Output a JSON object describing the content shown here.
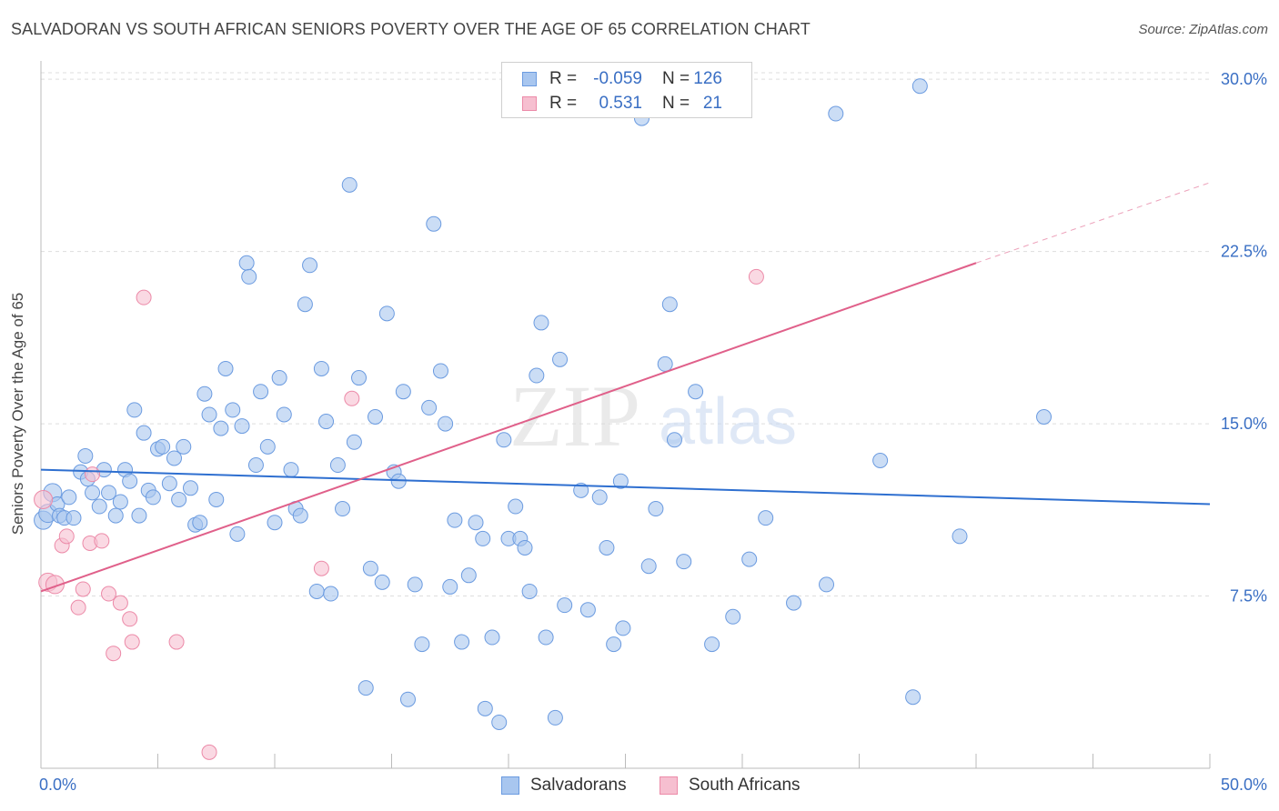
{
  "title": "SALVADORAN VS SOUTH AFRICAN SENIORS POVERTY OVER THE AGE OF 65 CORRELATION CHART",
  "source": "Source: ZipAtlas.com",
  "colors": {
    "blue_fill": "#a8c6ef",
    "blue_stroke": "#6b9be0",
    "blue_line": "#2e6fd0",
    "pink_fill": "#f6bfd0",
    "pink_stroke": "#ec8aa8",
    "pink_line": "#e0608a",
    "tick_label": "#3a6fc4",
    "grid": "#dddddd"
  },
  "legend": {
    "rows": [
      {
        "series": "Salvadorans",
        "r_label": "R =",
        "r_value": "-0.059",
        "n_label": "N =",
        "n_value": "126"
      },
      {
        "series": "South Africans",
        "r_label": "R =",
        "r_value": "0.531",
        "n_label": "N =",
        "n_value": "21"
      }
    ]
  },
  "bottom_legend": [
    "Salvadorans",
    "South Africans"
  ],
  "watermark": {
    "zip": "ZIP",
    "atlas": "atlas"
  },
  "chart_data": {
    "type": "scatter",
    "title": "SALVADORAN VS SOUTH AFRICAN SENIORS POVERTY OVER THE AGE OF 65 CORRELATION CHART",
    "xlabel": "",
    "ylabel": "Seniors Poverty Over the Age of 65",
    "xlim": [
      0,
      50
    ],
    "ylim": [
      0,
      30.6
    ],
    "x_tick_labels": [
      "0.0%",
      "50.0%"
    ],
    "y_ticks": [
      7.5,
      15.0,
      22.5,
      30.0
    ],
    "y_tick_labels": [
      "7.5%",
      "15.0%",
      "22.5%",
      "30.0%"
    ],
    "grid": true,
    "series": [
      {
        "name": "Salvadorans",
        "r": -0.059,
        "n": 126,
        "trend": {
          "x": [
            0,
            50
          ],
          "y": [
            13.0,
            11.5
          ]
        },
        "points": [
          [
            0.1,
            10.8
          ],
          [
            0.3,
            11.1
          ],
          [
            0.5,
            12.0
          ],
          [
            0.7,
            11.5
          ],
          [
            0.8,
            11.0
          ],
          [
            1.0,
            10.9
          ],
          [
            1.2,
            11.8
          ],
          [
            1.4,
            10.9
          ],
          [
            1.7,
            12.9
          ],
          [
            1.9,
            13.6
          ],
          [
            2.0,
            12.6
          ],
          [
            2.2,
            12.0
          ],
          [
            2.5,
            11.4
          ],
          [
            2.7,
            13.0
          ],
          [
            2.9,
            12.0
          ],
          [
            3.2,
            11.0
          ],
          [
            3.4,
            11.6
          ],
          [
            3.6,
            13.0
          ],
          [
            3.8,
            12.5
          ],
          [
            4.0,
            15.6
          ],
          [
            4.2,
            11.0
          ],
          [
            4.4,
            14.6
          ],
          [
            4.6,
            12.1
          ],
          [
            4.8,
            11.8
          ],
          [
            5.0,
            13.9
          ],
          [
            5.2,
            14.0
          ],
          [
            5.5,
            12.4
          ],
          [
            5.7,
            13.5
          ],
          [
            5.9,
            11.7
          ],
          [
            6.1,
            14.0
          ],
          [
            6.4,
            12.2
          ],
          [
            6.6,
            10.6
          ],
          [
            6.8,
            10.7
          ],
          [
            7.0,
            16.3
          ],
          [
            7.2,
            15.4
          ],
          [
            7.5,
            11.7
          ],
          [
            7.7,
            14.8
          ],
          [
            7.9,
            17.4
          ],
          [
            8.2,
            15.6
          ],
          [
            8.4,
            10.2
          ],
          [
            8.6,
            14.9
          ],
          [
            8.8,
            22.0
          ],
          [
            8.9,
            21.4
          ],
          [
            9.2,
            13.2
          ],
          [
            9.4,
            16.4
          ],
          [
            9.7,
            14.0
          ],
          [
            10.0,
            10.7
          ],
          [
            10.2,
            17.0
          ],
          [
            10.4,
            15.4
          ],
          [
            10.7,
            13.0
          ],
          [
            10.9,
            11.3
          ],
          [
            11.1,
            11.0
          ],
          [
            11.3,
            20.2
          ],
          [
            11.5,
            21.9
          ],
          [
            11.8,
            7.7
          ],
          [
            12.0,
            17.4
          ],
          [
            12.2,
            15.1
          ],
          [
            12.4,
            7.6
          ],
          [
            12.7,
            13.2
          ],
          [
            12.9,
            11.3
          ],
          [
            13.2,
            25.4
          ],
          [
            13.4,
            14.2
          ],
          [
            13.6,
            17.0
          ],
          [
            13.9,
            3.5
          ],
          [
            14.1,
            8.7
          ],
          [
            14.3,
            15.3
          ],
          [
            14.6,
            8.1
          ],
          [
            14.8,
            19.8
          ],
          [
            15.1,
            12.9
          ],
          [
            15.3,
            12.5
          ],
          [
            15.5,
            16.4
          ],
          [
            15.7,
            3.0
          ],
          [
            16.0,
            8.0
          ],
          [
            16.3,
            5.4
          ],
          [
            16.6,
            15.7
          ],
          [
            16.8,
            23.7
          ],
          [
            17.1,
            17.3
          ],
          [
            17.3,
            15.0
          ],
          [
            17.5,
            7.9
          ],
          [
            17.7,
            10.8
          ],
          [
            18.0,
            5.5
          ],
          [
            18.3,
            8.4
          ],
          [
            18.6,
            10.7
          ],
          [
            18.9,
            10.0
          ],
          [
            19.0,
            2.6
          ],
          [
            19.3,
            5.7
          ],
          [
            19.6,
            2.0
          ],
          [
            19.8,
            14.3
          ],
          [
            20.0,
            10.0
          ],
          [
            20.3,
            11.4
          ],
          [
            20.5,
            10.0
          ],
          [
            20.7,
            9.6
          ],
          [
            20.9,
            7.7
          ],
          [
            21.2,
            17.1
          ],
          [
            21.4,
            19.4
          ],
          [
            21.6,
            5.7
          ],
          [
            22.0,
            2.2
          ],
          [
            22.2,
            17.8
          ],
          [
            22.4,
            7.1
          ],
          [
            23.1,
            12.1
          ],
          [
            23.4,
            6.9
          ],
          [
            23.9,
            11.8
          ],
          [
            24.2,
            9.6
          ],
          [
            24.5,
            5.4
          ],
          [
            24.8,
            12.5
          ],
          [
            24.9,
            6.1
          ],
          [
            25.7,
            28.3
          ],
          [
            26.0,
            8.8
          ],
          [
            26.3,
            11.3
          ],
          [
            26.7,
            17.6
          ],
          [
            26.9,
            20.2
          ],
          [
            27.1,
            14.3
          ],
          [
            27.5,
            9.0
          ],
          [
            28.0,
            16.4
          ],
          [
            28.7,
            5.4
          ],
          [
            29.6,
            6.6
          ],
          [
            30.3,
            9.1
          ],
          [
            31.0,
            10.9
          ],
          [
            32.2,
            7.2
          ],
          [
            33.6,
            8.0
          ],
          [
            34.0,
            28.5
          ],
          [
            35.9,
            13.4
          ],
          [
            37.3,
            3.1
          ],
          [
            37.6,
            29.7
          ],
          [
            39.3,
            10.1
          ],
          [
            42.9,
            15.3
          ]
        ]
      },
      {
        "name": "South Africans",
        "r": 0.531,
        "n": 21,
        "trend": {
          "x": [
            0,
            40.0
          ],
          "y": [
            7.7,
            22.0
          ]
        },
        "trend_dashed": {
          "x": [
            40.0,
            50
          ],
          "y": [
            22.0,
            25.5
          ]
        },
        "points": [
          [
            0.1,
            11.7
          ],
          [
            0.3,
            8.1
          ],
          [
            0.6,
            8.0
          ],
          [
            0.9,
            9.7
          ],
          [
            1.1,
            10.1
          ],
          [
            1.6,
            7.0
          ],
          [
            1.8,
            7.8
          ],
          [
            2.1,
            9.8
          ],
          [
            2.2,
            12.8
          ],
          [
            2.6,
            9.9
          ],
          [
            2.9,
            7.6
          ],
          [
            3.1,
            5.0
          ],
          [
            3.4,
            7.2
          ],
          [
            3.8,
            6.5
          ],
          [
            3.9,
            5.5
          ],
          [
            4.4,
            20.5
          ],
          [
            5.8,
            5.5
          ],
          [
            7.2,
            0.7
          ],
          [
            12.0,
            8.7
          ],
          [
            13.3,
            16.1
          ],
          [
            30.6,
            21.4
          ]
        ]
      }
    ]
  }
}
